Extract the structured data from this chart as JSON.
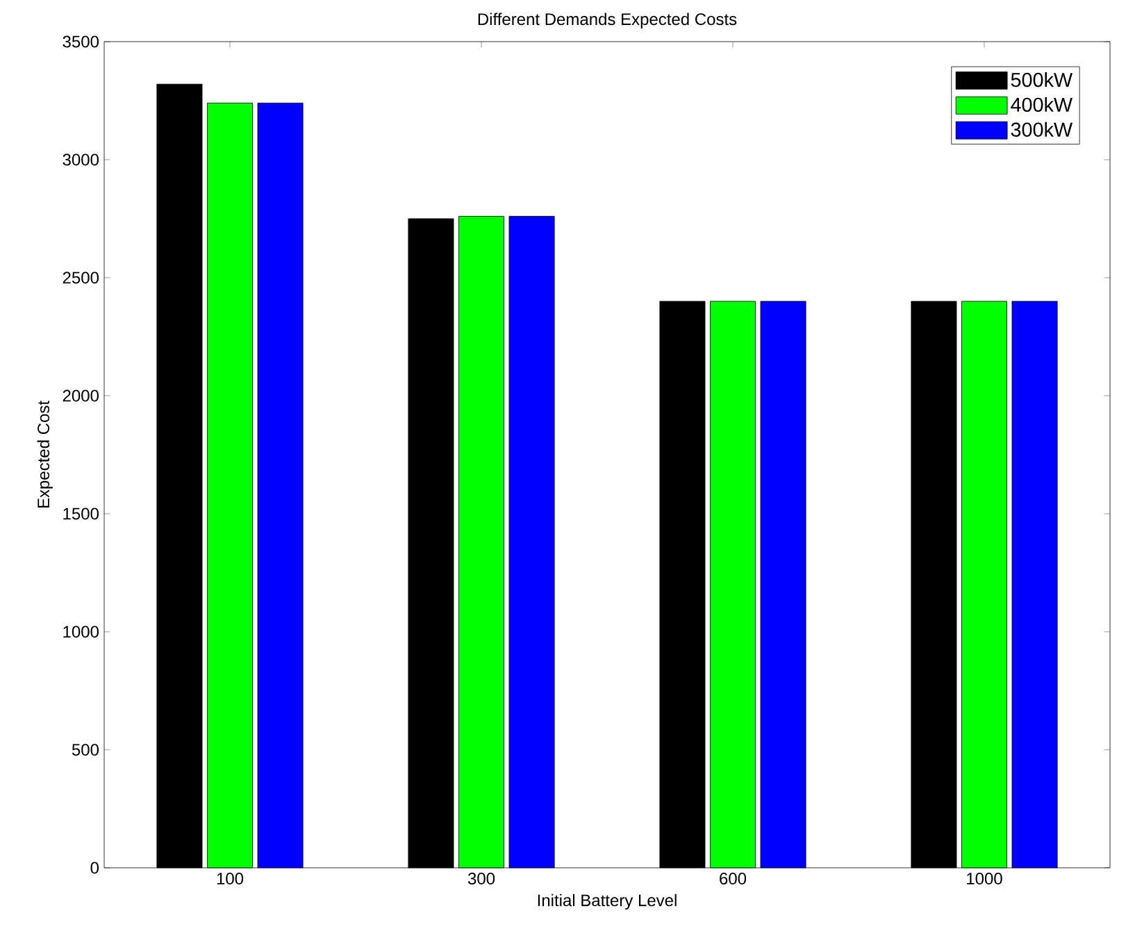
{
  "chart_data": {
    "type": "bar",
    "title": "Different Demands Expected Costs",
    "xlabel": "Initial Battery Level",
    "ylabel": "Expected Cost",
    "categories": [
      "100",
      "300",
      "600",
      "1000"
    ],
    "series": [
      {
        "name": "500kW",
        "color": "#000000",
        "values": [
          3320,
          2750,
          2400,
          2400
        ]
      },
      {
        "name": "400kW",
        "color": "#00ff00",
        "values": [
          3240,
          2760,
          2400,
          2400
        ]
      },
      {
        "name": "300kW",
        "color": "#0000ff",
        "values": [
          3240,
          2760,
          2400,
          2400
        ]
      }
    ],
    "ylim": [
      0,
      3500
    ],
    "yticks": [
      0,
      500,
      1000,
      1500,
      2000,
      2500,
      3000,
      3500
    ],
    "grid": false,
    "legend": "top right"
  }
}
